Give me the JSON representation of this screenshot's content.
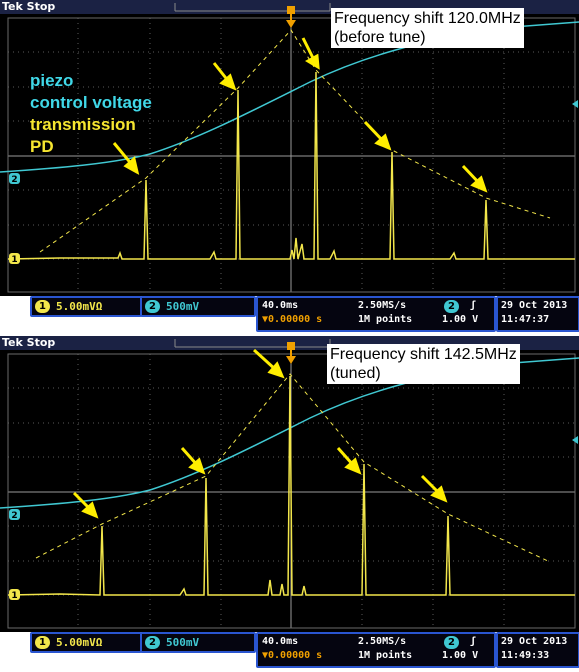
{
  "colors": {
    "trace_ch1": "#f2e64b",
    "trace_ch2": "#40c8d2",
    "arrow": "#ffee00",
    "legend_piezo": "#40d8e8",
    "legend_pd": "#f6e630",
    "frame_blue": "#2a55d0"
  },
  "legend": {
    "piezo": "piezo",
    "control_voltage": "control voltage",
    "transmission": "transmission",
    "pd": "PD"
  },
  "panels": [
    {
      "status_top": "Tek Stop",
      "annotation_line1": "Frequency shift 120.0MHz",
      "annotation_line2": "(before tune)",
      "ch1_marker": "1",
      "ch2_marker": "2",
      "ch1_scale": "5.00mVΩ",
      "ch2_scale": "500mV",
      "timebase": "40.0ms",
      "sample_rate": "2.50MS/s",
      "trigger_position": "▼0.00000 s",
      "record_length": "1M points",
      "trigger_channel": "2",
      "trigger_slope": "ʃ",
      "trigger_level": "1.00 V",
      "date": "29 Oct  2013",
      "time": "11:47:37"
    },
    {
      "status_top": "Tek Stop",
      "annotation_line1": "Frequency shift 142.5MHz",
      "annotation_line2": "(tuned)",
      "ch1_marker": "1",
      "ch2_marker": "2",
      "ch1_scale": "5.00mVΩ",
      "ch2_scale": "500mV",
      "timebase": "40.0ms",
      "sample_rate": "2.50MS/s",
      "trigger_position": "▼0.00000 s",
      "record_length": "1M points",
      "trigger_channel": "2",
      "trigger_slope": "ʃ",
      "trigger_level": "1.00 V",
      "date": "29 Oct  2013",
      "time": "11:49:33"
    }
  ]
}
